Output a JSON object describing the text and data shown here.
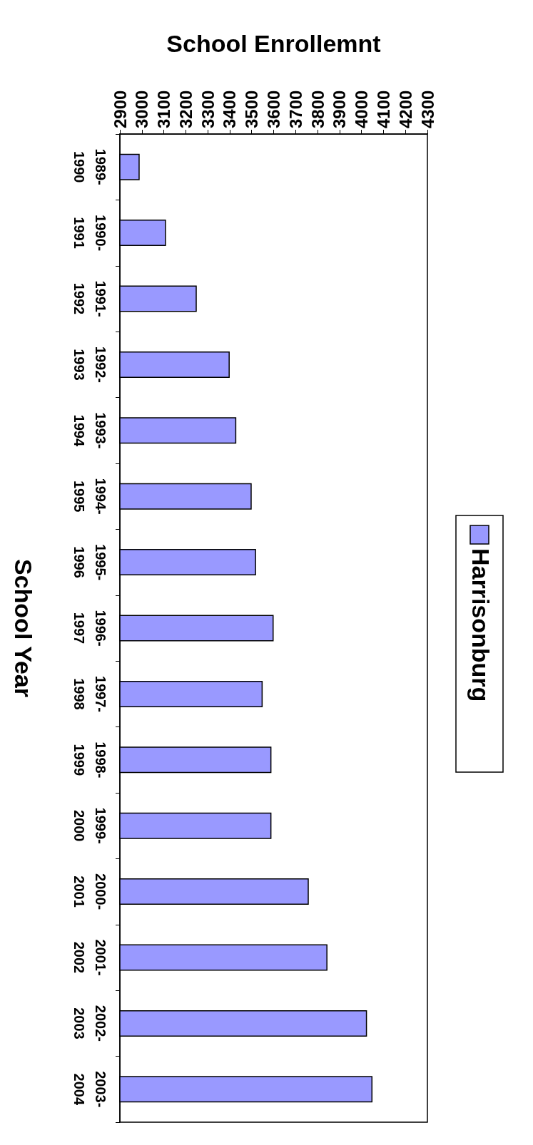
{
  "chart_data": {
    "type": "bar",
    "orientation": "horizontal",
    "xlabel": "School Enrollemnt",
    "ylabel": "School Year",
    "categories": [
      "1989-1990",
      "1990-1991",
      "1991-1992",
      "1992-1993",
      "1993-1994",
      "1994-1995",
      "1995-1996",
      "1996-1997",
      "1997-1998",
      "1998-1999",
      "1999-2000",
      "2000-2001",
      "2001-2002",
      "2002-2003",
      "2003-2004"
    ],
    "series": [
      {
        "name": "Harrisonburg",
        "color": "#9999ff",
        "values": [
          2990,
          3110,
          3250,
          3400,
          3430,
          3500,
          3520,
          3600,
          3550,
          3590,
          3590,
          3760,
          3845,
          4025,
          4050
        ]
      }
    ],
    "xlim": [
      2900,
      4300
    ],
    "xticks": [
      2900,
      3000,
      3100,
      3200,
      3300,
      3400,
      3500,
      3600,
      3700,
      3800,
      3900,
      4000,
      4100,
      4200,
      4300
    ],
    "legend": "right"
  }
}
